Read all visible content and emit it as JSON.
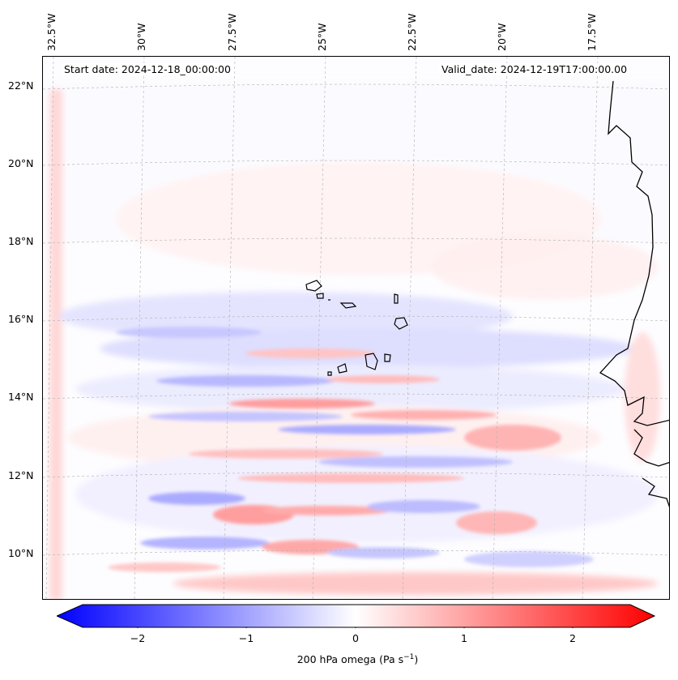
{
  "header": {
    "start_date": "Start date: 2024-12-18_00:00:00",
    "valid_date": "Valid_date: 2024-12-19T17:00:00.00"
  },
  "axes": {
    "longitude_labels": [
      "32.5°W",
      "30°W",
      "27.5°W",
      "25°W",
      "22.5°W",
      "20°W",
      "17.5°W"
    ],
    "latitude_labels": [
      "22°N",
      "20°N",
      "18°N",
      "16°N",
      "14°N",
      "12°N",
      "10°N"
    ]
  },
  "colorbar": {
    "ticks": [
      "−2",
      "−1",
      "0",
      "1",
      "2"
    ],
    "label_prefix": "200 hPa omega (Pa s",
    "label_exp": "−1",
    "label_suffix": ")",
    "min_color": "#0000ff",
    "mid_color": "#ffffff",
    "max_color": "#ff0000"
  },
  "colors": {
    "land_coast": "#000000",
    "grid": "#b0b0b0"
  }
}
